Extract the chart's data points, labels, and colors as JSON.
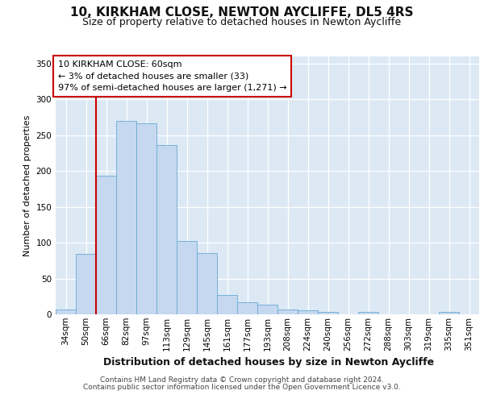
{
  "title1": "10, KIRKHAM CLOSE, NEWTON AYCLIFFE, DL5 4RS",
  "title2": "Size of property relative to detached houses in Newton Aycliffe",
  "xlabel": "Distribution of detached houses by size in Newton Aycliffe",
  "ylabel": "Number of detached properties",
  "categories": [
    "34sqm",
    "50sqm",
    "66sqm",
    "82sqm",
    "97sqm",
    "113sqm",
    "129sqm",
    "145sqm",
    "161sqm",
    "177sqm",
    "193sqm",
    "208sqm",
    "224sqm",
    "240sqm",
    "256sqm",
    "272sqm",
    "288sqm",
    "303sqm",
    "319sqm",
    "335sqm",
    "351sqm"
  ],
  "values": [
    7,
    84,
    193,
    270,
    267,
    236,
    102,
    85,
    27,
    17,
    14,
    7,
    6,
    3,
    0,
    3,
    0,
    0,
    0,
    3,
    0
  ],
  "bar_color": "#c5d8ef",
  "bar_edge_color": "#6aaad4",
  "vline_color": "#cc0000",
  "vline_x": 1.5,
  "annotation_text": "10 KIRKHAM CLOSE: 60sqm\n← 3% of detached houses are smaller (33)\n97% of semi-detached houses are larger (1,271) →",
  "annotation_box_bg": "#ffffff",
  "annotation_box_edge": "#cc0000",
  "ylim": [
    0,
    360
  ],
  "yticks": [
    0,
    50,
    100,
    150,
    200,
    250,
    300,
    350
  ],
  "footer1": "Contains HM Land Registry data © Crown copyright and database right 2024.",
  "footer2": "Contains public sector information licensed under the Open Government Licence v3.0.",
  "plot_bg_color": "#dce9f5",
  "grid_color": "#ffffff",
  "title1_fontsize": 11,
  "title2_fontsize": 9,
  "xlabel_fontsize": 9,
  "ylabel_fontsize": 8,
  "ann_fontsize": 8,
  "footer_fontsize": 6.5,
  "tick_fontsize": 7.5
}
